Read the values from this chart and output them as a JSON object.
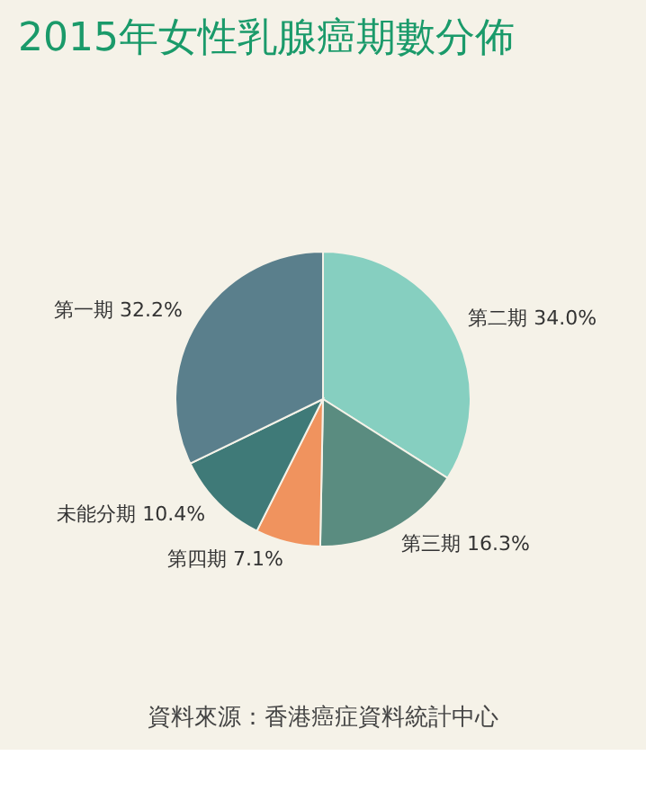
{
  "chart_data": {
    "type": "pie",
    "title": "2015年女性乳腺癌期數分佈",
    "categories": [
      "第二期",
      "第三期",
      "第四期",
      "未能分期",
      "第一期"
    ],
    "values": [
      34.0,
      16.3,
      7.1,
      10.4,
      32.2
    ],
    "value_labels": [
      "34.0%",
      "16.3%",
      "7.1%",
      "10.4%",
      "32.2%"
    ],
    "colors": [
      "#86cfc0",
      "#5a8c80",
      "#f0935e",
      "#3f7a78",
      "#5a7f8c"
    ],
    "annotations": [
      "資料來源：香港癌症資料統計中心"
    ],
    "legend": false
  }
}
